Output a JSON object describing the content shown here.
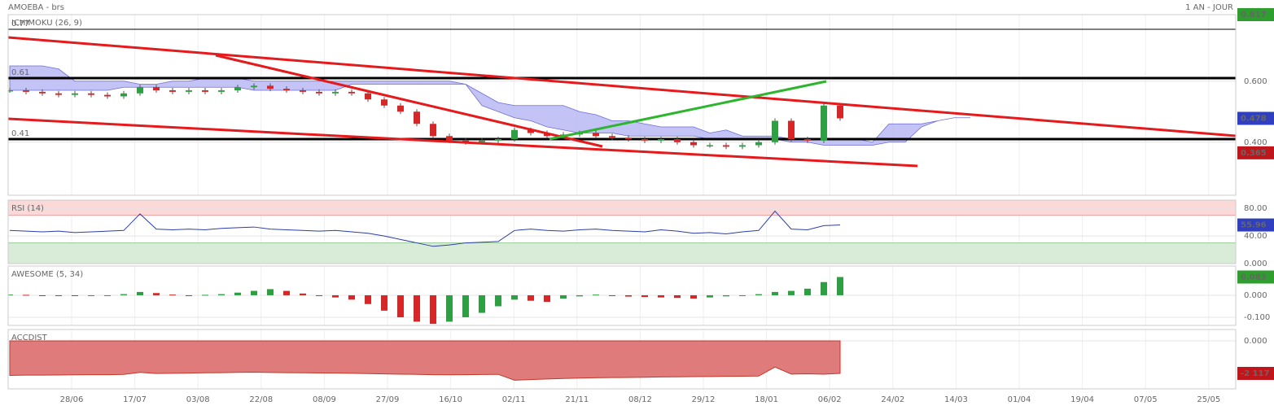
{
  "header": {
    "title": "AMOEBA - brs",
    "period": "1 AN - JOUR"
  },
  "x_ticks": [
    "28/06",
    "17/07",
    "03/08",
    "22/08",
    "08/09",
    "27/09",
    "16/10",
    "02/11",
    "21/11",
    "08/12",
    "29/12",
    "18/01",
    "06/02",
    "24/02",
    "14/03",
    "01/04",
    "19/04",
    "07/05",
    "25/05"
  ],
  "chart_data": [
    {
      "type": "candlestick",
      "title": "ICHIMOKU (26, 9)",
      "values": [
        0.57,
        0.565,
        0.56,
        0.555,
        0.56,
        0.555,
        0.55,
        0.56,
        0.58,
        0.57,
        0.565,
        0.57,
        0.565,
        0.57,
        0.58,
        0.585,
        0.575,
        0.57,
        0.565,
        0.56,
        0.565,
        0.56,
        0.54,
        0.52,
        0.5,
        0.46,
        0.42,
        0.405,
        0.4,
        0.405,
        0.41,
        0.44,
        0.43,
        0.42,
        0.425,
        0.43,
        0.42,
        0.415,
        0.41,
        0.405,
        0.41,
        0.4,
        0.39,
        0.39,
        0.385,
        0.39,
        0.4,
        0.47,
        0.41,
        0.405,
        0.52,
        0.478
      ],
      "cloud_upper": [
        0.65,
        0.65,
        0.65,
        0.64,
        0.6,
        0.6,
        0.6,
        0.6,
        0.59,
        0.59,
        0.6,
        0.6,
        0.61,
        0.61,
        0.61,
        0.6,
        0.6,
        0.6,
        0.6,
        0.6,
        0.6,
        0.6,
        0.6,
        0.6,
        0.6,
        0.6,
        0.6,
        0.6,
        0.59,
        0.56,
        0.53,
        0.52,
        0.52,
        0.52,
        0.52,
        0.5,
        0.49,
        0.47,
        0.47,
        0.46,
        0.45,
        0.45,
        0.45,
        0.43,
        0.44,
        0.42,
        0.42,
        0.42,
        0.41,
        0.41,
        0.41,
        0.41,
        0.41,
        0.4,
        0.46,
        0.46,
        0.46,
        0.47,
        0.48,
        0.48
      ],
      "cloud_lower": [
        0.57,
        0.57,
        0.57,
        0.57,
        0.57,
        0.57,
        0.57,
        0.58,
        0.58,
        0.58,
        0.58,
        0.58,
        0.58,
        0.58,
        0.58,
        0.57,
        0.57,
        0.57,
        0.57,
        0.57,
        0.57,
        0.59,
        0.59,
        0.59,
        0.59,
        0.59,
        0.59,
        0.59,
        0.59,
        0.52,
        0.5,
        0.48,
        0.47,
        0.45,
        0.44,
        0.43,
        0.43,
        0.43,
        0.42,
        0.42,
        0.42,
        0.42,
        0.42,
        0.41,
        0.41,
        0.41,
        0.41,
        0.41,
        0.4,
        0.4,
        0.39,
        0.39,
        0.39,
        0.39,
        0.4,
        0.4,
        0.45,
        0.47,
        0.48,
        0.48
      ],
      "levels": [
        0.77,
        0.61,
        0.41
      ],
      "ylim": [
        0.226,
        0.818
      ],
      "yticks": [
        {
          "value": 0.6,
          "label": "0.600"
        },
        {
          "value": 0.4,
          "label": "0.400"
        }
      ],
      "badges": [
        {
          "value": 0.617,
          "label": "0.617",
          "color": "#2e9e2e"
        },
        {
          "value": 0.478,
          "label": "0.478",
          "color": "#2f3fbf"
        },
        {
          "value": 0.365,
          "label": "0.365",
          "color": "#c0161b"
        }
      ],
      "up_color": "#2ea043",
      "down_color": "#d62728",
      "cloud_color": "#b9b9f5"
    },
    {
      "type": "line",
      "title": "RSI (14)",
      "color": "#2c3ea8",
      "values": [
        48,
        47,
        46,
        47,
        45,
        46,
        47,
        48,
        72,
        50,
        49,
        50,
        49,
        51,
        52,
        53,
        50,
        49,
        48,
        47,
        48,
        46,
        44,
        40,
        35,
        30,
        25,
        27,
        30,
        31,
        32,
        48,
        50,
        48,
        47,
        49,
        50,
        48,
        47,
        46,
        49,
        47,
        44,
        45,
        43,
        46,
        48,
        76,
        50,
        49,
        55,
        55.96
      ],
      "bands": [
        30,
        70
      ],
      "ylim": [
        0,
        92
      ],
      "yticks": [
        {
          "value": 80,
          "label": "80.00"
        },
        {
          "value": 40,
          "label": "40.00"
        },
        {
          "value": 0,
          "label": "0.000"
        }
      ],
      "badges": [
        {
          "value": 55.96,
          "label": "55.96",
          "color": "#2f3fbf"
        }
      ]
    },
    {
      "type": "bar",
      "title": "AWESOME (5, 34)",
      "up_color": "#2ea043",
      "down_color": "#d62728",
      "values": [
        0.003,
        0.002,
        0,
        -0.002,
        -0.003,
        -0.003,
        -0.002,
        0.005,
        0.015,
        0.01,
        0.003,
        0,
        0.002,
        0.005,
        0.012,
        0.02,
        0.028,
        0.02,
        0.008,
        0,
        -0.01,
        -0.02,
        -0.04,
        -0.07,
        -0.1,
        -0.12,
        -0.13,
        -0.12,
        -0.1,
        -0.08,
        -0.05,
        -0.02,
        -0.025,
        -0.03,
        -0.015,
        -0.005,
        0.003,
        -0.002,
        -0.006,
        -0.008,
        -0.01,
        -0.012,
        -0.015,
        -0.01,
        -0.005,
        -0.002,
        0.005,
        0.015,
        0.02,
        0.03,
        0.06,
        0.083
      ],
      "ylim": [
        -0.137,
        0.133
      ],
      "yticks": [
        {
          "value": 0,
          "label": "0.000"
        },
        {
          "value": -0.1,
          "label": "-0.100"
        }
      ],
      "badges": [
        {
          "value": 0.083,
          "label": "0.083",
          "color": "#2e9e2e"
        }
      ]
    },
    {
      "type": "area",
      "title": "ACCDIST",
      "color": "#c0392b",
      "values": [
        -2250,
        -2230,
        -2230,
        -2220,
        -2210,
        -2200,
        -2200,
        -2180,
        -2050,
        -2120,
        -2110,
        -2100,
        -2080,
        -2070,
        -2050,
        -2040,
        -2060,
        -2070,
        -2080,
        -2090,
        -2100,
        -2110,
        -2130,
        -2150,
        -2170,
        -2180,
        -2200,
        -2210,
        -2200,
        -2190,
        -2180,
        -2560,
        -2520,
        -2480,
        -2450,
        -2420,
        -2400,
        -2390,
        -2380,
        -2370,
        -2350,
        -2340,
        -2330,
        -2320,
        -2310,
        -2300,
        -2290,
        -1700,
        -2160,
        -2140,
        -2170,
        -2117
      ],
      "ylim": [
        -3122,
        741
      ],
      "yticks": [
        {
          "value": 0,
          "label": "0.000"
        }
      ],
      "badges": [
        {
          "value": -2117,
          "label": "-2 117",
          "color": "#c0161b"
        }
      ]
    }
  ]
}
